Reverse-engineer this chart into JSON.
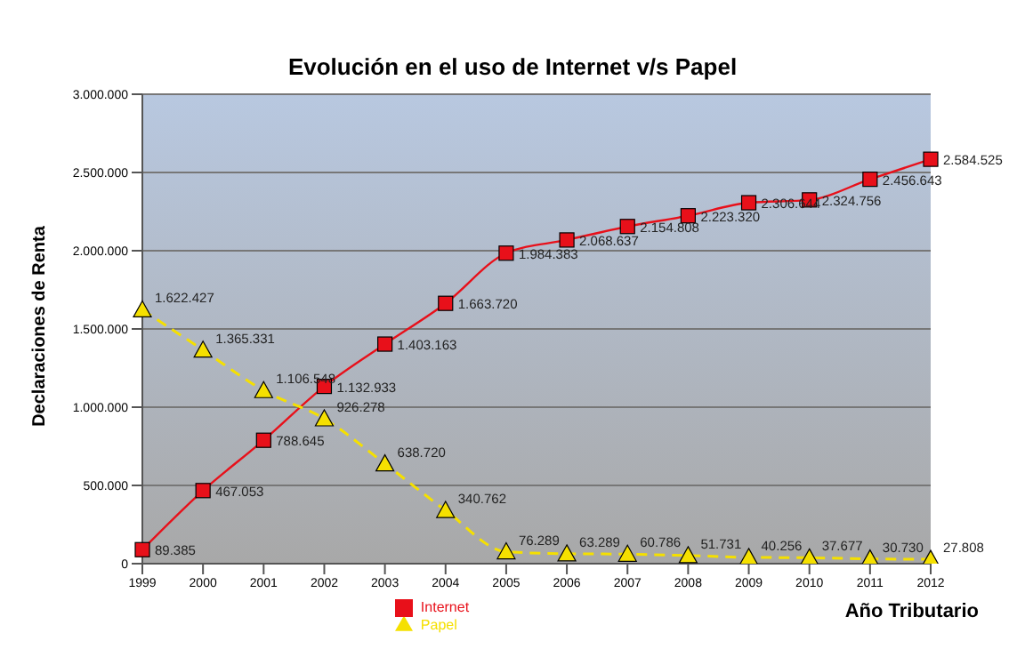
{
  "chart_data": {
    "type": "line",
    "title": "Evolución en el uso de Internet v/s Papel",
    "xlabel": "Año Tributario",
    "ylabel": "Declaraciones de Renta",
    "categories": [
      "1999",
      "2000",
      "2001",
      "2002",
      "2003",
      "2004",
      "2005",
      "2006",
      "2007",
      "2008",
      "2009",
      "2010",
      "2011",
      "2012"
    ],
    "series": [
      {
        "name": "Internet",
        "color": "#e8101a",
        "marker": "square",
        "line_style": "solid",
        "values": [
          89385,
          467053,
          788645,
          1132933,
          1403163,
          1663720,
          1984383,
          2068637,
          2154808,
          2223320,
          2306644,
          2324756,
          2456643,
          2584525
        ],
        "value_labels": [
          "89.385",
          "467.053",
          "788.645",
          "1.132.933",
          "1.403.163",
          "1.663.720",
          "1.984.383",
          "2.068.637",
          "2.154.808",
          "2.223.320",
          "2.306.644",
          "2.324.756",
          "2.456.643",
          "2.584.525"
        ]
      },
      {
        "name": "Papel",
        "color": "#f5e000",
        "marker": "triangle",
        "line_style": "dashed",
        "values": [
          1622427,
          1365331,
          1106548,
          926278,
          638720,
          340762,
          76289,
          63289,
          60786,
          51731,
          40256,
          37677,
          30730,
          27808
        ],
        "value_labels": [
          "1.622.427",
          "1.365.331",
          "1.106.548",
          "926.278",
          "638.720",
          "340.762",
          "76.289",
          "63.289",
          "60.786",
          "51.731",
          "40.256",
          "37.677",
          "30.730",
          "27.808"
        ]
      }
    ],
    "ylim": [
      0,
      3000000
    ],
    "yticks": [
      {
        "value": 0,
        "label": "0"
      },
      {
        "value": 500000,
        "label": "500.000"
      },
      {
        "value": 1000000,
        "label": "1.000.000"
      },
      {
        "value": 1500000,
        "label": "1.500.000"
      },
      {
        "value": 2000000,
        "label": "2.000.000"
      },
      {
        "value": 2500000,
        "label": "2.500.000"
      },
      {
        "value": 3000000,
        "label": "3.000.000"
      }
    ],
    "grid": "y",
    "legend": "bottom"
  }
}
